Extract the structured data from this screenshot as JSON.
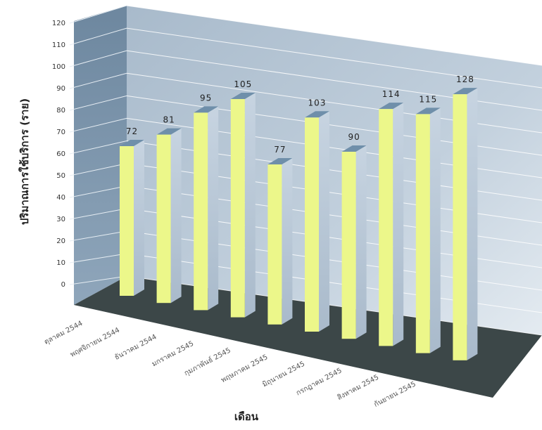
{
  "chart_data": {
    "type": "bar",
    "xlabel": "เดือน",
    "ylabel": "ปริมาณการใช้บริการ (ราย)",
    "ylim": [
      0,
      120
    ],
    "y_ticks": [
      "0",
      "10",
      "20",
      "30",
      "40",
      "50",
      "60",
      "70",
      "80",
      "90",
      "100",
      "110",
      "120"
    ],
    "grid": true,
    "categories": [
      "ตุลาคม 2544",
      "พฤศจิกายน 2544",
      "ธันวาคม 2544",
      "มกราคม 2545",
      "กุมภาพันธ์ 2545",
      "พฤษภาคม 2545",
      "มิถุนายน 2545",
      "กรกฎาคม 2545",
      "สิงหาคม 2545",
      "กันยายน 2545"
    ],
    "values": [
      72,
      81,
      95,
      105,
      77,
      103,
      90,
      114,
      115,
      128
    ],
    "value_labels": [
      "72",
      "81",
      "95",
      "105",
      "77",
      "103",
      "90",
      "114",
      "115",
      "128"
    ],
    "colors": {
      "bar_front": "#ecf78a",
      "bar_side": "#bccbdc",
      "bar_top": "#6f8faa",
      "back_wall": "#aebfd0",
      "left_wall": "#7690a8",
      "floor": "#3c4748",
      "grid": "#ffffff"
    }
  }
}
